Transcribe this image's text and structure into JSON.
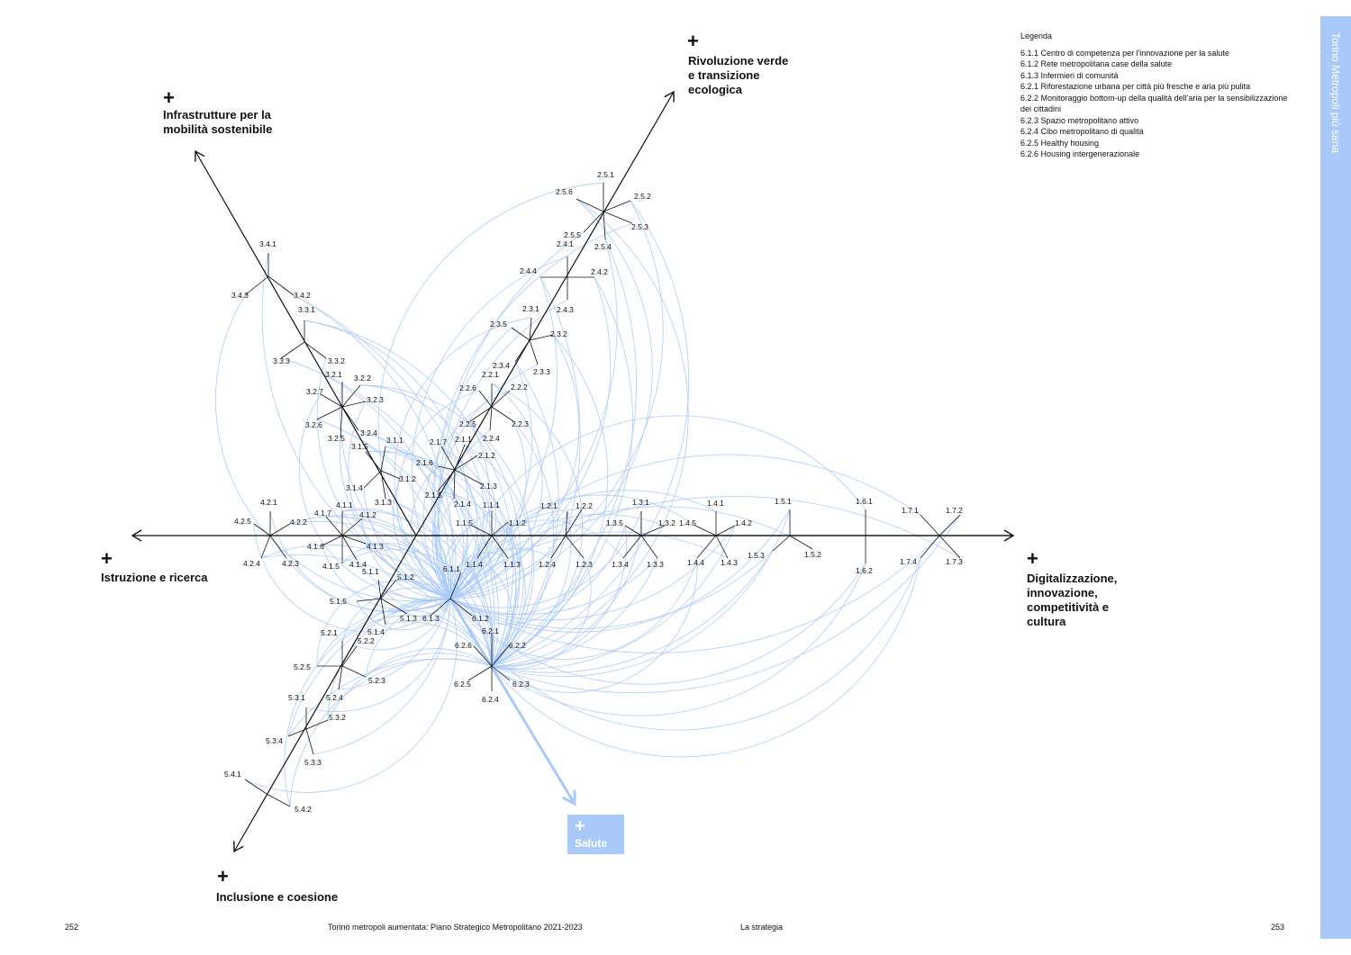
{
  "axes": {
    "mobilita": {
      "plus": "+",
      "title": "Infrastrutture per la\nmobilità sostenibile"
    },
    "verde": {
      "plus": "+",
      "title": "Rivoluzione verde\ne transizione\necologica"
    },
    "istruzione": {
      "plus": "+",
      "title": "Istruzione e ricerca"
    },
    "digitale": {
      "plus": "+",
      "title": "Digitalizzazione,\ninnovazione,\ncompetitività e\ncultura"
    },
    "inclusione": {
      "plus": "+",
      "title": "Inclusione e coesione"
    },
    "salute": {
      "plus": "+",
      "title": "Salute"
    }
  },
  "legend": {
    "title": "Legenda",
    "items": [
      "6.1.1 Centro di competenza per l'innovazione per la salute",
      "6.1.2 Rete metropolitana case della salute",
      "6.1.3 Infermieri di comunità",
      "6.2.1 Riforestazione urbana per città più fresche e aria più pulita",
      "6.2.2 Monitoraggio bottom-up della qualità dell'aria per la sensibilizzazione dei cittadini",
      "6.2.3 Spazio metropolitano attivo",
      "6.2.4 Cibo metropolitano di qualità",
      "6.2.5 Healthy housing",
      "6.2.6 Housing intergenerazionale"
    ]
  },
  "side_tab": "Torino Metropoli più sana",
  "footer": {
    "left_page": "252",
    "title": "Torino metropoli aumentata: Piano Strategico Metropolitano 2021-2023",
    "section": "La strategia",
    "right_page": "253"
  },
  "colors": {
    "axis": "#111111",
    "link": "#a9c9f8",
    "accent": "#a9c9f8"
  },
  "nodes": [
    {
      "id": "2.5",
      "labels": [
        "2.5.1",
        "2.5.2",
        "2.5.3",
        "2.5.4",
        "2.5.5",
        "2.5.6"
      ]
    },
    {
      "id": "2.4",
      "labels": [
        "2.4.1",
        "2.4.2",
        "2.4.3",
        "2.4.4"
      ]
    },
    {
      "id": "2.3",
      "labels": [
        "2.3.1",
        "2.3.2",
        "2.3.3",
        "2.3.4",
        "2.3.5"
      ]
    },
    {
      "id": "2.2",
      "labels": [
        "2.2.1",
        "2.2.2",
        "2.2.3",
        "2.2.4",
        "2.2.5",
        "2.2.6"
      ]
    },
    {
      "id": "2.1",
      "labels": [
        "2.1.1",
        "2.1.2",
        "2.1.3",
        "2.1.4",
        "2.1.5",
        "2.1.6",
        "2.1.7"
      ]
    },
    {
      "id": "3.4",
      "labels": [
        "3.4.1",
        "3.4.2",
        "3.4.3"
      ]
    },
    {
      "id": "3.3",
      "labels": [
        "3.3.1",
        "3.3.2",
        "3.3.3"
      ]
    },
    {
      "id": "3.2",
      "labels": [
        "3.2.1",
        "3.2.2",
        "3.2.3",
        "3.2.4",
        "3.2.5",
        "3.2.6",
        "3.2.7"
      ]
    },
    {
      "id": "3.1",
      "labels": [
        "3.1.1",
        "3.1.2",
        "3.1.3",
        "3.1.4",
        "3.1.5"
      ]
    },
    {
      "id": "4.2",
      "labels": [
        "4.2.1",
        "4.2.2",
        "4.2.3",
        "4.2.4",
        "4.2.5"
      ]
    },
    {
      "id": "4.1",
      "labels": [
        "4.1.1",
        "4.1.2",
        "4.1.3",
        "4.1.4",
        "4.1.5",
        "4.1.6",
        "4.1.7"
      ]
    },
    {
      "id": "1.1",
      "labels": [
        "1.1.1",
        "1.1.2",
        "1.1.3",
        "1.1.4",
        "1.1.5"
      ]
    },
    {
      "id": "1.2",
      "labels": [
        "1.2.1",
        "1.2.2",
        "1.2.3",
        "1.2.4"
      ]
    },
    {
      "id": "1.3",
      "labels": [
        "1.3.1",
        "1.3.2",
        "1.3.3",
        "1.3.4",
        "1.3.5"
      ]
    },
    {
      "id": "1.4",
      "labels": [
        "1.4.1",
        "1.4.2",
        "1.4.3",
        "1.4.4",
        "1.4.5"
      ]
    },
    {
      "id": "1.5",
      "labels": [
        "1.5.1",
        "1.5.2",
        "1.5.3"
      ]
    },
    {
      "id": "1.6",
      "labels": [
        "1.6.1",
        "1.6.2"
      ]
    },
    {
      "id": "1.7",
      "labels": [
        "1.7.1",
        "1.7.2",
        "1.7.3",
        "1.7.4"
      ]
    },
    {
      "id": "5.1",
      "labels": [
        "5.1.1",
        "5.1.2",
        "5.1.3",
        "5.1.4",
        "5.1.5"
      ]
    },
    {
      "id": "5.2",
      "labels": [
        "5.2.1",
        "5.2.2",
        "5.2.3",
        "5.2.4",
        "5.2.5"
      ]
    },
    {
      "id": "5.3",
      "labels": [
        "5.3.1",
        "5.3.2",
        "5.3.3",
        "5.3.4"
      ]
    },
    {
      "id": "5.4",
      "labels": [
        "5.4.1",
        "5.4.2"
      ]
    },
    {
      "id": "6.1",
      "labels": [
        "6.1.1",
        "6.1.2",
        "6.1.3"
      ]
    },
    {
      "id": "6.2",
      "labels": [
        "6.2.1",
        "6.2.2",
        "6.2.3",
        "6.2.4",
        "6.2.5",
        "6.2.6"
      ]
    }
  ]
}
